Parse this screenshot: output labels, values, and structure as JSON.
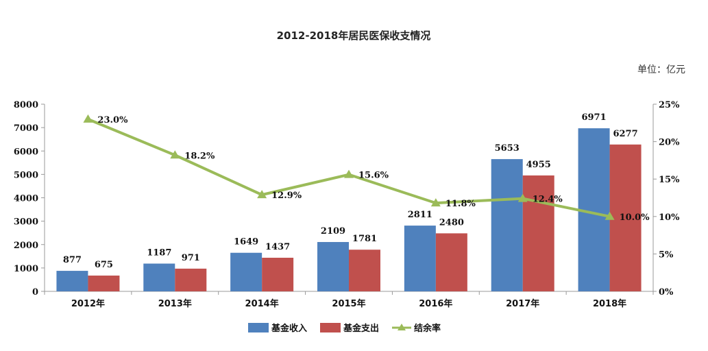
{
  "chart_data": {
    "type": "bar",
    "title": "2012-2018年居民医保收支情况",
    "unit_label": "单位：亿元",
    "categories": [
      "2012年",
      "2013年",
      "2014年",
      "2015年",
      "2016年",
      "2017年",
      "2018年"
    ],
    "series": [
      {
        "name": "基金收入",
        "type": "bar",
        "axis": "left",
        "color": "#4F81BD",
        "values": [
          877,
          1187,
          1649,
          2109,
          2811,
          5653,
          6971
        ]
      },
      {
        "name": "基金支出",
        "type": "bar",
        "axis": "left",
        "color": "#C0504D",
        "values": [
          675,
          971,
          1437,
          1781,
          2480,
          4955,
          6277
        ]
      },
      {
        "name": "结余率",
        "type": "line",
        "axis": "right",
        "color": "#9BBB59",
        "values": [
          23.0,
          18.2,
          12.9,
          15.6,
          11.8,
          12.4,
          10.0
        ],
        "labels": [
          "23.0%",
          "18.2%",
          "12.9%",
          "15.6%",
          "11.8%",
          "12.4%",
          "10.0%"
        ]
      }
    ],
    "ylim_left": [
      0,
      8000
    ],
    "yticks_left": [
      "0",
      "1000",
      "2000",
      "3000",
      "4000",
      "5000",
      "6000",
      "7000",
      "8000"
    ],
    "ylim_right": [
      0,
      25
    ],
    "yticks_right": [
      "0%",
      "5%",
      "10%",
      "15%",
      "20%",
      "25%"
    ],
    "legend_position": "bottom",
    "grid": false
  }
}
